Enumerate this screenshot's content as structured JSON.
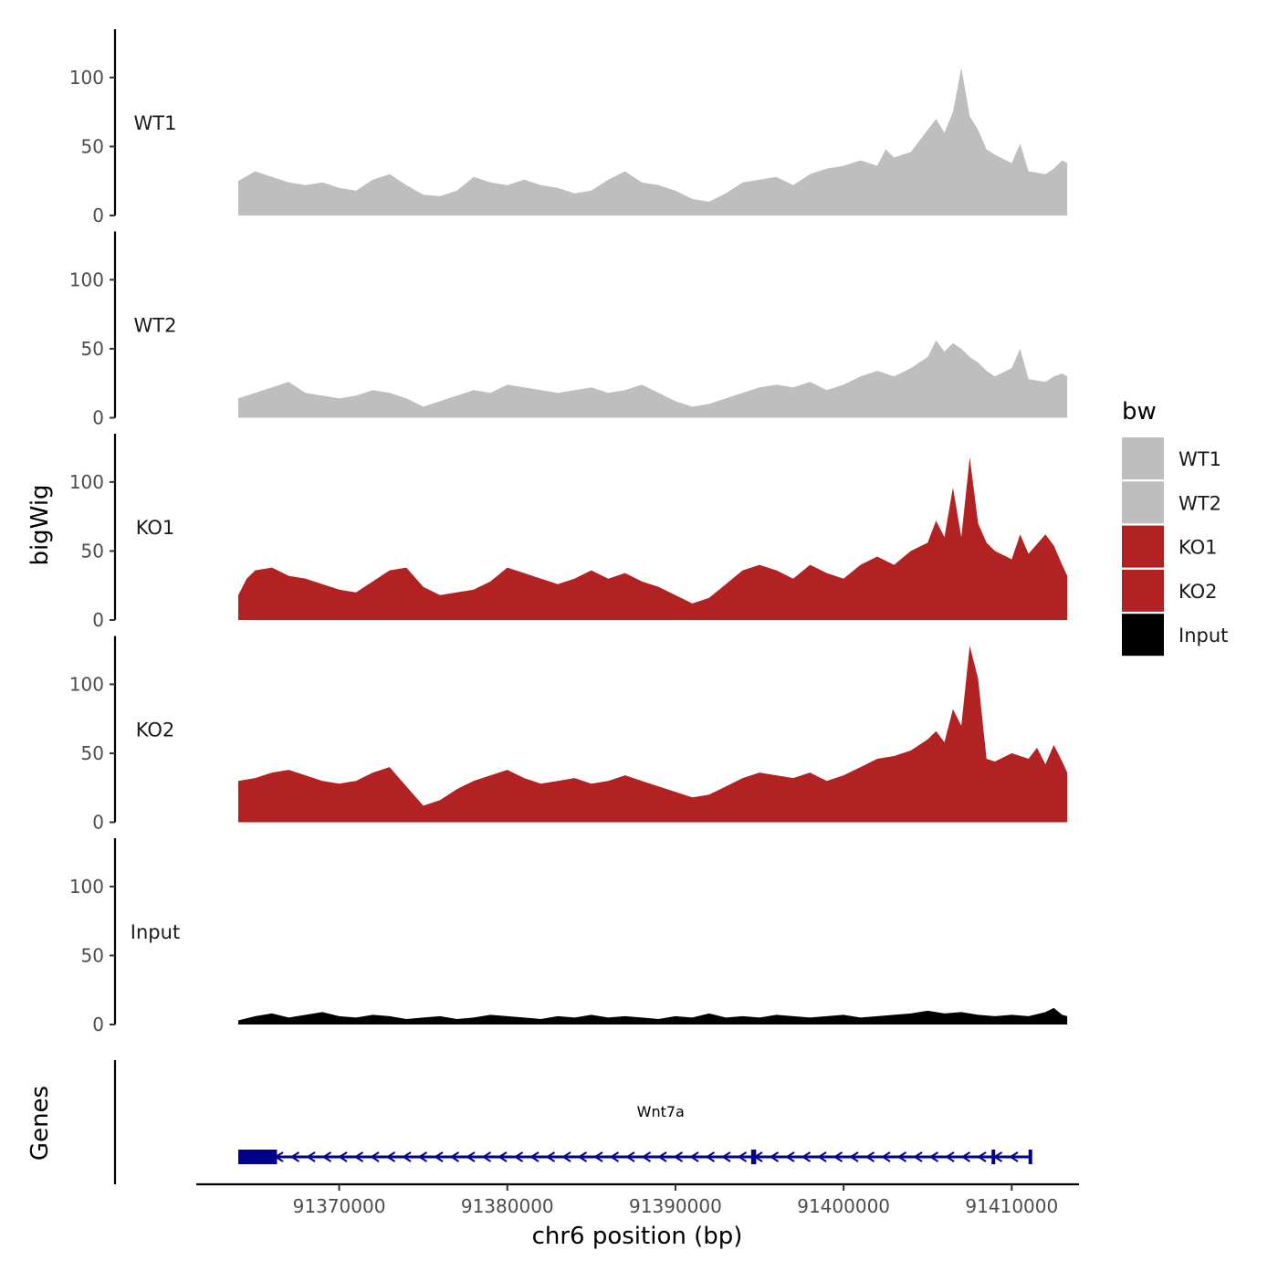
{
  "chart_data": {
    "type": "area",
    "chromosome": "chr6",
    "xlabel": "chr6 position (bp)",
    "ylabel": "bigWig",
    "genes_track_label": "Genes",
    "xlim": [
      91361500,
      91414000
    ],
    "x_ticks": [
      91370000,
      91380000,
      91390000,
      91400000,
      91410000
    ],
    "x_tick_labels": [
      "91370000",
      "91380000",
      "91390000",
      "91400000",
      "91410000"
    ],
    "ylim": [
      0,
      135
    ],
    "y_ticks": [
      0,
      50,
      100
    ],
    "y_tick_labels": [
      "0",
      "50",
      "100"
    ],
    "signal_range": [
      91364000,
      91413300
    ],
    "tracks": [
      {
        "name": "WT1",
        "color": "#bebebe",
        "points": [
          [
            91364000,
            25
          ],
          [
            91365000,
            32
          ],
          [
            91366000,
            28
          ],
          [
            91367000,
            24
          ],
          [
            91368000,
            22
          ],
          [
            91369000,
            24
          ],
          [
            91370000,
            20
          ],
          [
            91371000,
            18
          ],
          [
            91372000,
            26
          ],
          [
            91373000,
            30
          ],
          [
            91374000,
            22
          ],
          [
            91375000,
            15
          ],
          [
            91376000,
            14
          ],
          [
            91377000,
            18
          ],
          [
            91378000,
            28
          ],
          [
            91379000,
            24
          ],
          [
            91380000,
            22
          ],
          [
            91381000,
            26
          ],
          [
            91382000,
            22
          ],
          [
            91383000,
            20
          ],
          [
            91384000,
            16
          ],
          [
            91385000,
            18
          ],
          [
            91386000,
            26
          ],
          [
            91387000,
            32
          ],
          [
            91388000,
            24
          ],
          [
            91389000,
            22
          ],
          [
            91390000,
            18
          ],
          [
            91391000,
            12
          ],
          [
            91392000,
            10
          ],
          [
            91393000,
            16
          ],
          [
            91394000,
            24
          ],
          [
            91395000,
            26
          ],
          [
            91396000,
            28
          ],
          [
            91397000,
            22
          ],
          [
            91398000,
            30
          ],
          [
            91399000,
            34
          ],
          [
            91400000,
            36
          ],
          [
            91401000,
            40
          ],
          [
            91402000,
            36
          ],
          [
            91402500,
            48
          ],
          [
            91403000,
            42
          ],
          [
            91404000,
            46
          ],
          [
            91405000,
            62
          ],
          [
            91405500,
            70
          ],
          [
            91406000,
            60
          ],
          [
            91406500,
            75
          ],
          [
            91407000,
            107
          ],
          [
            91407500,
            72
          ],
          [
            91408000,
            62
          ],
          [
            91408500,
            48
          ],
          [
            91409000,
            44
          ],
          [
            91410000,
            38
          ],
          [
            91410500,
            52
          ],
          [
            91411000,
            32
          ],
          [
            91412000,
            30
          ],
          [
            91412500,
            34
          ],
          [
            91413000,
            40
          ],
          [
            91413300,
            38
          ]
        ]
      },
      {
        "name": "WT2",
        "color": "#bebebe",
        "points": [
          [
            91364000,
            14
          ],
          [
            91365000,
            18
          ],
          [
            91366000,
            22
          ],
          [
            91367000,
            26
          ],
          [
            91368000,
            18
          ],
          [
            91369000,
            16
          ],
          [
            91370000,
            14
          ],
          [
            91371000,
            16
          ],
          [
            91372000,
            20
          ],
          [
            91373000,
            18
          ],
          [
            91374000,
            14
          ],
          [
            91375000,
            8
          ],
          [
            91376000,
            12
          ],
          [
            91377000,
            16
          ],
          [
            91378000,
            20
          ],
          [
            91379000,
            18
          ],
          [
            91380000,
            24
          ],
          [
            91381000,
            22
          ],
          [
            91382000,
            20
          ],
          [
            91383000,
            18
          ],
          [
            91384000,
            20
          ],
          [
            91385000,
            22
          ],
          [
            91386000,
            18
          ],
          [
            91387000,
            20
          ],
          [
            91388000,
            24
          ],
          [
            91389000,
            18
          ],
          [
            91390000,
            12
          ],
          [
            91391000,
            8
          ],
          [
            91392000,
            10
          ],
          [
            91393000,
            14
          ],
          [
            91394000,
            18
          ],
          [
            91395000,
            22
          ],
          [
            91396000,
            24
          ],
          [
            91397000,
            22
          ],
          [
            91398000,
            26
          ],
          [
            91399000,
            20
          ],
          [
            91400000,
            24
          ],
          [
            91401000,
            30
          ],
          [
            91402000,
            34
          ],
          [
            91403000,
            30
          ],
          [
            91404000,
            36
          ],
          [
            91405000,
            44
          ],
          [
            91405500,
            56
          ],
          [
            91406000,
            48
          ],
          [
            91406500,
            54
          ],
          [
            91407000,
            50
          ],
          [
            91407500,
            44
          ],
          [
            91408000,
            40
          ],
          [
            91408500,
            34
          ],
          [
            91409000,
            30
          ],
          [
            91410000,
            36
          ],
          [
            91410500,
            50
          ],
          [
            91411000,
            28
          ],
          [
            91412000,
            26
          ],
          [
            91412500,
            30
          ],
          [
            91413000,
            32
          ],
          [
            91413300,
            30
          ]
        ]
      },
      {
        "name": "KO1",
        "color": "#b22222",
        "points": [
          [
            91364000,
            18
          ],
          [
            91364500,
            30
          ],
          [
            91365000,
            36
          ],
          [
            91366000,
            38
          ],
          [
            91367000,
            32
          ],
          [
            91368000,
            30
          ],
          [
            91369000,
            26
          ],
          [
            91370000,
            22
          ],
          [
            91371000,
            20
          ],
          [
            91372000,
            28
          ],
          [
            91373000,
            36
          ],
          [
            91374000,
            38
          ],
          [
            91375000,
            24
          ],
          [
            91376000,
            18
          ],
          [
            91377000,
            20
          ],
          [
            91378000,
            22
          ],
          [
            91379000,
            28
          ],
          [
            91380000,
            38
          ],
          [
            91381000,
            34
          ],
          [
            91382000,
            30
          ],
          [
            91383000,
            26
          ],
          [
            91384000,
            30
          ],
          [
            91385000,
            36
          ],
          [
            91386000,
            30
          ],
          [
            91387000,
            34
          ],
          [
            91388000,
            28
          ],
          [
            91389000,
            24
          ],
          [
            91390000,
            18
          ],
          [
            91391000,
            12
          ],
          [
            91392000,
            16
          ],
          [
            91393000,
            26
          ],
          [
            91394000,
            36
          ],
          [
            91395000,
            40
          ],
          [
            91396000,
            36
          ],
          [
            91397000,
            30
          ],
          [
            91398000,
            40
          ],
          [
            91399000,
            34
          ],
          [
            91400000,
            30
          ],
          [
            91401000,
            40
          ],
          [
            91402000,
            46
          ],
          [
            91403000,
            40
          ],
          [
            91404000,
            50
          ],
          [
            91405000,
            56
          ],
          [
            91405500,
            72
          ],
          [
            91406000,
            60
          ],
          [
            91406500,
            96
          ],
          [
            91407000,
            60
          ],
          [
            91407500,
            118
          ],
          [
            91408000,
            70
          ],
          [
            91408500,
            56
          ],
          [
            91409000,
            50
          ],
          [
            91410000,
            44
          ],
          [
            91410500,
            62
          ],
          [
            91411000,
            48
          ],
          [
            91412000,
            62
          ],
          [
            91412500,
            54
          ],
          [
            91413000,
            40
          ],
          [
            91413300,
            32
          ]
        ]
      },
      {
        "name": "KO2",
        "color": "#b22222",
        "points": [
          [
            91364000,
            30
          ],
          [
            91365000,
            32
          ],
          [
            91366000,
            36
          ],
          [
            91367000,
            38
          ],
          [
            91368000,
            34
          ],
          [
            91369000,
            30
          ],
          [
            91370000,
            28
          ],
          [
            91371000,
            30
          ],
          [
            91372000,
            36
          ],
          [
            91373000,
            40
          ],
          [
            91374000,
            26
          ],
          [
            91375000,
            12
          ],
          [
            91376000,
            16
          ],
          [
            91377000,
            24
          ],
          [
            91378000,
            30
          ],
          [
            91379000,
            34
          ],
          [
            91380000,
            38
          ],
          [
            91381000,
            32
          ],
          [
            91382000,
            28
          ],
          [
            91383000,
            30
          ],
          [
            91384000,
            32
          ],
          [
            91385000,
            28
          ],
          [
            91386000,
            30
          ],
          [
            91387000,
            34
          ],
          [
            91388000,
            30
          ],
          [
            91389000,
            26
          ],
          [
            91390000,
            22
          ],
          [
            91391000,
            18
          ],
          [
            91392000,
            20
          ],
          [
            91393000,
            26
          ],
          [
            91394000,
            32
          ],
          [
            91395000,
            36
          ],
          [
            91396000,
            34
          ],
          [
            91397000,
            32
          ],
          [
            91398000,
            36
          ],
          [
            91399000,
            30
          ],
          [
            91400000,
            34
          ],
          [
            91401000,
            40
          ],
          [
            91402000,
            46
          ],
          [
            91403000,
            48
          ],
          [
            91404000,
            52
          ],
          [
            91405000,
            60
          ],
          [
            91405500,
            66
          ],
          [
            91406000,
            58
          ],
          [
            91406500,
            82
          ],
          [
            91407000,
            70
          ],
          [
            91407500,
            128
          ],
          [
            91408000,
            104
          ],
          [
            91408500,
            46
          ],
          [
            91409000,
            44
          ],
          [
            91410000,
            50
          ],
          [
            91411000,
            46
          ],
          [
            91411500,
            54
          ],
          [
            91412000,
            42
          ],
          [
            91412500,
            56
          ],
          [
            91413000,
            44
          ],
          [
            91413300,
            36
          ]
        ]
      },
      {
        "name": "Input",
        "color": "#000000",
        "points": [
          [
            91364000,
            3
          ],
          [
            91365000,
            6
          ],
          [
            91366000,
            8
          ],
          [
            91367000,
            5
          ],
          [
            91368000,
            7
          ],
          [
            91369000,
            9
          ],
          [
            91370000,
            6
          ],
          [
            91371000,
            5
          ],
          [
            91372000,
            7
          ],
          [
            91373000,
            6
          ],
          [
            91374000,
            4
          ],
          [
            91375000,
            5
          ],
          [
            91376000,
            6
          ],
          [
            91377000,
            4
          ],
          [
            91378000,
            5
          ],
          [
            91379000,
            7
          ],
          [
            91380000,
            6
          ],
          [
            91381000,
            5
          ],
          [
            91382000,
            4
          ],
          [
            91383000,
            6
          ],
          [
            91384000,
            5
          ],
          [
            91385000,
            7
          ],
          [
            91386000,
            5
          ],
          [
            91387000,
            6
          ],
          [
            91388000,
            5
          ],
          [
            91389000,
            4
          ],
          [
            91390000,
            6
          ],
          [
            91391000,
            5
          ],
          [
            91392000,
            8
          ],
          [
            91393000,
            5
          ],
          [
            91394000,
            6
          ],
          [
            91395000,
            5
          ],
          [
            91396000,
            7
          ],
          [
            91397000,
            6
          ],
          [
            91398000,
            5
          ],
          [
            91399000,
            6
          ],
          [
            91400000,
            7
          ],
          [
            91401000,
            5
          ],
          [
            91402000,
            6
          ],
          [
            91403000,
            7
          ],
          [
            91404000,
            8
          ],
          [
            91405000,
            10
          ],
          [
            91406000,
            8
          ],
          [
            91407000,
            9
          ],
          [
            91408000,
            7
          ],
          [
            91409000,
            6
          ],
          [
            91410000,
            7
          ],
          [
            91411000,
            6
          ],
          [
            91412000,
            9
          ],
          [
            91412500,
            12
          ],
          [
            91413000,
            7
          ],
          [
            91413300,
            6
          ]
        ]
      }
    ],
    "legend": {
      "title": "bw",
      "position": "right",
      "items": [
        {
          "label": "WT1",
          "color": "#bebebe"
        },
        {
          "label": "WT2",
          "color": "#bebebe"
        },
        {
          "label": "KO1",
          "color": "#b22222"
        },
        {
          "label": "KO2",
          "color": "#b22222"
        },
        {
          "label": "Input",
          "color": "#000000"
        }
      ]
    },
    "gene": {
      "name": "Wnt7a",
      "strand": "-",
      "color": "#00008b",
      "start": 91364000,
      "end": 91411200,
      "exons": [
        [
          91364000,
          91366300
        ],
        [
          91394500,
          91394800
        ],
        [
          91408800,
          91409000
        ],
        [
          91411000,
          91411200
        ]
      ]
    }
  }
}
